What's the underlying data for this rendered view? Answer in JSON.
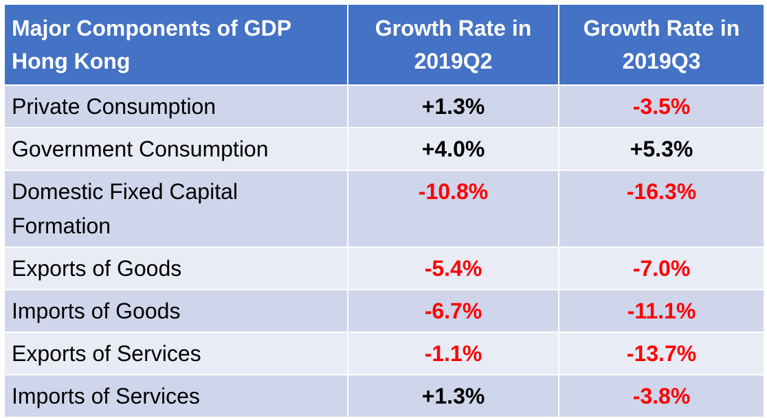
{
  "table": {
    "header": [
      "Major Components of GDP Hong Kong",
      "Growth Rate in 2019Q2",
      "Growth Rate in 2019Q3"
    ],
    "rows": [
      [
        "Private Consumption",
        "+1.3%",
        "-3.5%"
      ],
      [
        "Government Consumption",
        "+4.0%",
        "+5.3%"
      ],
      [
        "Domestic Fixed Capital Formation",
        "-10.8%",
        "-16.3%"
      ],
      [
        "Exports of Goods",
        "-5.4%",
        "-7.0%"
      ],
      [
        "Imports of Goods",
        "-6.7%",
        "-11.1%"
      ],
      [
        "Exports of Services",
        "-1.1%",
        "-13.7%"
      ],
      [
        "Imports of Services",
        "+1.3%",
        "-3.8%"
      ]
    ]
  }
}
